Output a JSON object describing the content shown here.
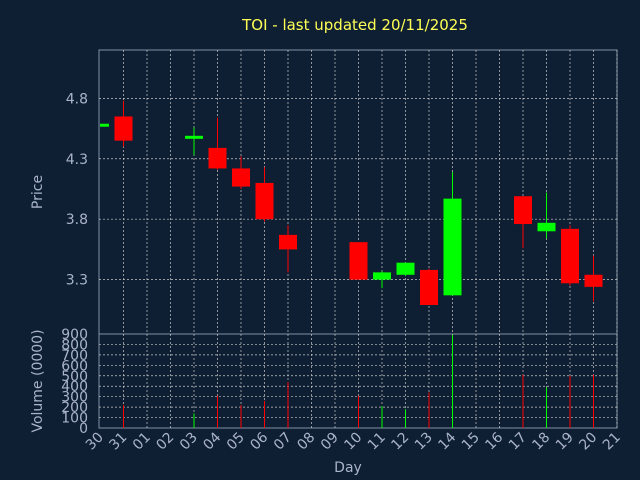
{
  "chart_data": {
    "type": "candlestick",
    "title": "TOI - last updated 20/11/2025",
    "xlabel": "Day",
    "colors": {
      "background": "#0f1f33",
      "up": "#00ff00",
      "down": "#ff0000",
      "grid": "#c8c8c8",
      "title": "#ffff55",
      "text": "#aab4c8"
    },
    "x_tick_labels": [
      "30",
      "31",
      "01",
      "02",
      "03",
      "04",
      "05",
      "06",
      "07",
      "08",
      "09",
      "10",
      "11",
      "12",
      "13",
      "14",
      "15",
      "16",
      "17",
      "18",
      "19",
      "20",
      "21"
    ],
    "price_panel": {
      "ylabel": "Price",
      "y_ticks": [
        "4.8",
        "4.3",
        "3.8",
        "3.3"
      ],
      "ylim": [
        2.85,
        5.2
      ]
    },
    "volume_panel": {
      "ylabel": "Volume (0000)",
      "y_ticks": [
        "900",
        "800",
        "700",
        "600",
        "500",
        "400",
        "300",
        "200",
        "100",
        "0"
      ],
      "ylim": [
        0,
        900
      ]
    },
    "candles": [
      {
        "date": "30",
        "open": 4.59,
        "high": 4.59,
        "low": 4.59,
        "close": 4.59,
        "volume": 0
      },
      {
        "date": "31",
        "open": 4.65,
        "high": 4.78,
        "low": 4.4,
        "close": 4.45,
        "volume": 220
      },
      {
        "date": "03",
        "open": 4.47,
        "high": 4.56,
        "low": 4.33,
        "close": 4.49,
        "volume": 140
      },
      {
        "date": "04",
        "open": 4.39,
        "high": 4.64,
        "low": 4.21,
        "close": 4.22,
        "volume": 310
      },
      {
        "date": "05",
        "open": 4.22,
        "high": 4.32,
        "low": 4.05,
        "close": 4.07,
        "volume": 220
      },
      {
        "date": "06",
        "open": 4.1,
        "high": 4.23,
        "low": 3.78,
        "close": 3.8,
        "volume": 260
      },
      {
        "date": "07",
        "open": 3.67,
        "high": 3.75,
        "low": 3.36,
        "close": 3.55,
        "volume": 440
      },
      {
        "date": "10",
        "open": 3.61,
        "high": 3.61,
        "low": 3.3,
        "close": 3.3,
        "volume": 310
      },
      {
        "date": "11",
        "open": 3.3,
        "high": 3.37,
        "low": 3.23,
        "close": 3.36,
        "volume": 210
      },
      {
        "date": "12",
        "open": 3.34,
        "high": 3.44,
        "low": 3.33,
        "close": 3.44,
        "volume": 180
      },
      {
        "date": "13",
        "open": 3.38,
        "high": 3.39,
        "low": 3.09,
        "close": 3.09,
        "volume": 340
      },
      {
        "date": "14",
        "open": 3.17,
        "high": 4.19,
        "low": 3.17,
        "close": 3.97,
        "volume": 890
      },
      {
        "date": "17",
        "open": 3.99,
        "high": 3.99,
        "low": 3.56,
        "close": 3.76,
        "volume": 510
      },
      {
        "date": "18",
        "open": 3.7,
        "high": 4.02,
        "low": 3.64,
        "close": 3.77,
        "volume": 390
      },
      {
        "date": "19",
        "open": 3.72,
        "high": 3.75,
        "low": 3.25,
        "close": 3.27,
        "volume": 500
      },
      {
        "date": "20",
        "open": 3.34,
        "high": 3.5,
        "low": 3.12,
        "close": 3.24,
        "volume": 510
      }
    ]
  }
}
